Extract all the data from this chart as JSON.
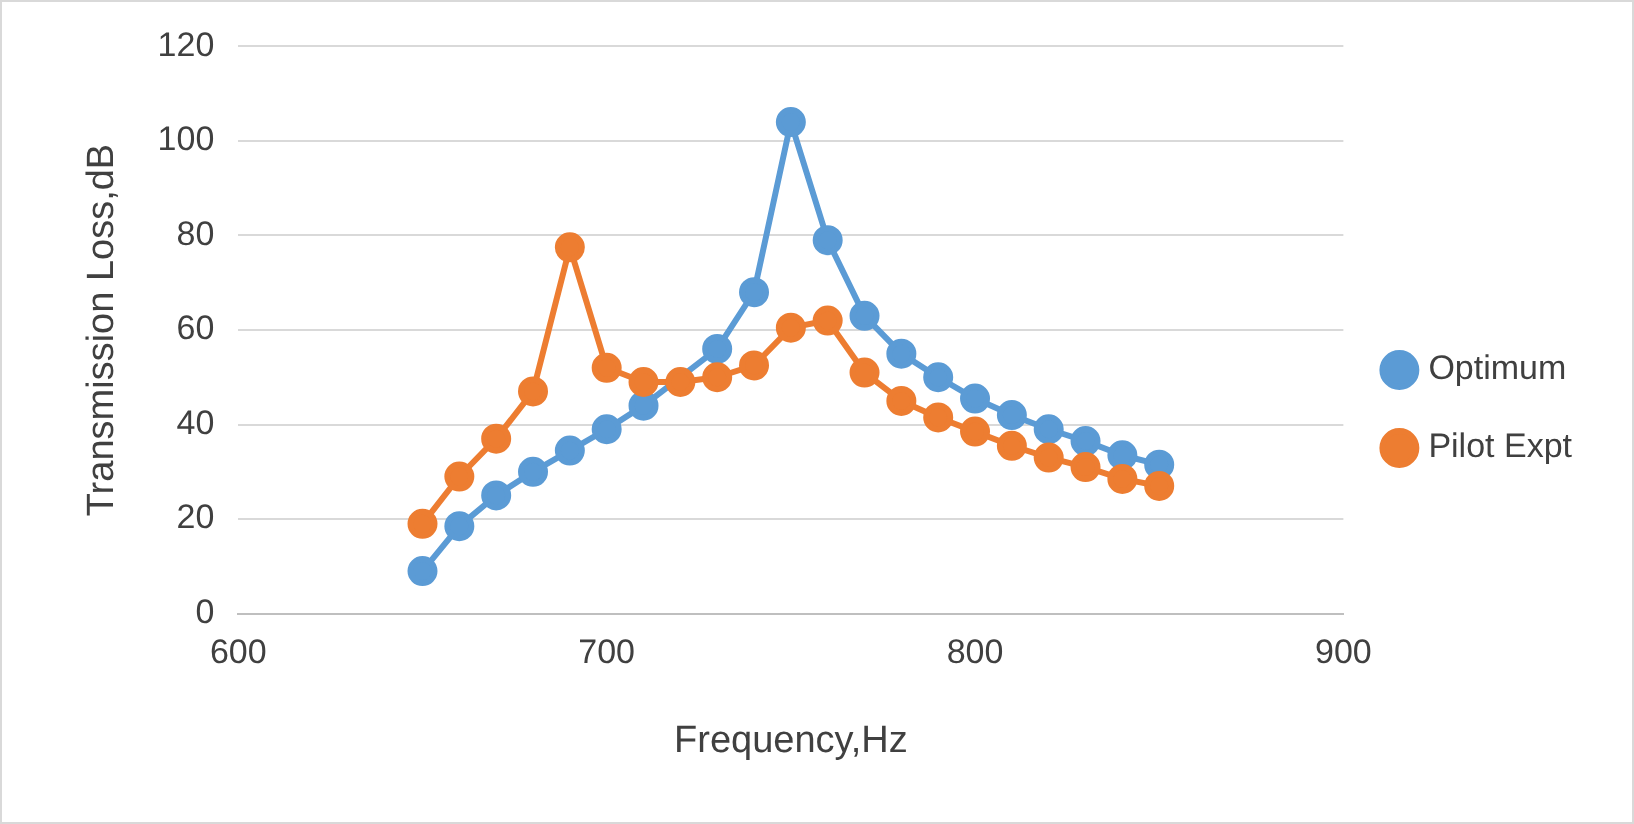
{
  "chart_data": {
    "type": "line",
    "xlabel": "Frequency,Hz",
    "ylabel": "Transmission Loss,dB",
    "x": [
      650,
      660,
      670,
      680,
      690,
      700,
      710,
      720,
      730,
      740,
      750,
      760,
      770,
      780,
      790,
      800,
      810,
      820,
      830,
      840,
      850
    ],
    "series": [
      {
        "name": "Optimum",
        "color": "#5b9bd5",
        "values": [
          9,
          18.5,
          25,
          30,
          34.5,
          39,
          44,
          null,
          56,
          68,
          104,
          79,
          63,
          55,
          50,
          45.5,
          42,
          39,
          36.5,
          33.5,
          31.5
        ]
      },
      {
        "name": "Pilot Expt",
        "color": "#ed7d31",
        "values": [
          19,
          29,
          37,
          47,
          77.5,
          52,
          49,
          49,
          50,
          52.5,
          60.5,
          62,
          51,
          45,
          41.5,
          38.5,
          35.5,
          33,
          31,
          28.5,
          27
        ]
      }
    ],
    "xlim": [
      600,
      900
    ],
    "xticks": [
      600,
      700,
      800,
      900
    ],
    "ylim": [
      0,
      120
    ],
    "yticks": [
      0,
      20,
      40,
      60,
      80,
      100,
      120
    ],
    "grid": "y",
    "legend": "right",
    "marker": "circle",
    "line_style": "solid"
  }
}
